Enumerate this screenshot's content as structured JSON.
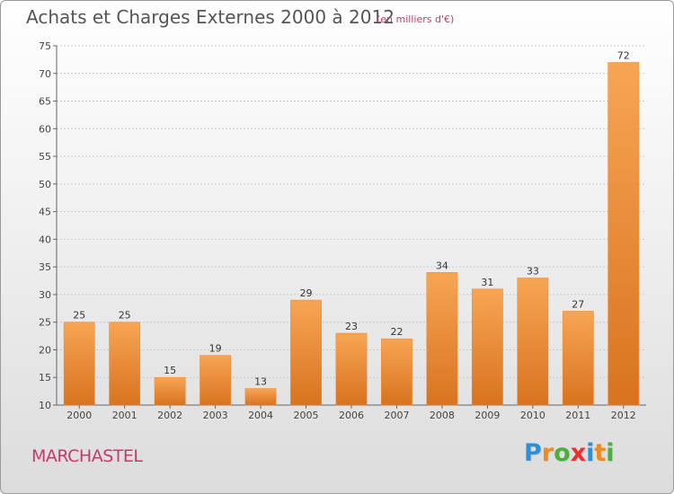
{
  "chart_data": {
    "type": "bar",
    "title": "Achats et Charges Externes 2000 à 2012",
    "subtitle": "(en milliers d'€)",
    "categories": [
      "2000",
      "2001",
      "2002",
      "2003",
      "2004",
      "2005",
      "2006",
      "2007",
      "2008",
      "2009",
      "2010",
      "2011",
      "2012"
    ],
    "values": [
      25,
      25,
      15,
      19,
      13,
      29,
      23,
      22,
      34,
      31,
      33,
      27,
      72
    ],
    "ylim": [
      10,
      75
    ],
    "yticks": [
      10,
      15,
      20,
      25,
      30,
      35,
      40,
      45,
      50,
      55,
      60,
      65,
      70,
      75
    ],
    "grid": true,
    "bar_color": "#f39c44",
    "bar_color_dark": "#d86f18"
  },
  "commune": "MARCHASTEL",
  "logo": {
    "letters": [
      "P",
      "r",
      "o",
      "x",
      "i",
      "t",
      "i"
    ],
    "colors": [
      "#2f8fd6",
      "#f08a1c",
      "#4caf3c",
      "#e8322e",
      "#2f8fd6",
      "#f08a1c",
      "#4caf3c"
    ]
  }
}
